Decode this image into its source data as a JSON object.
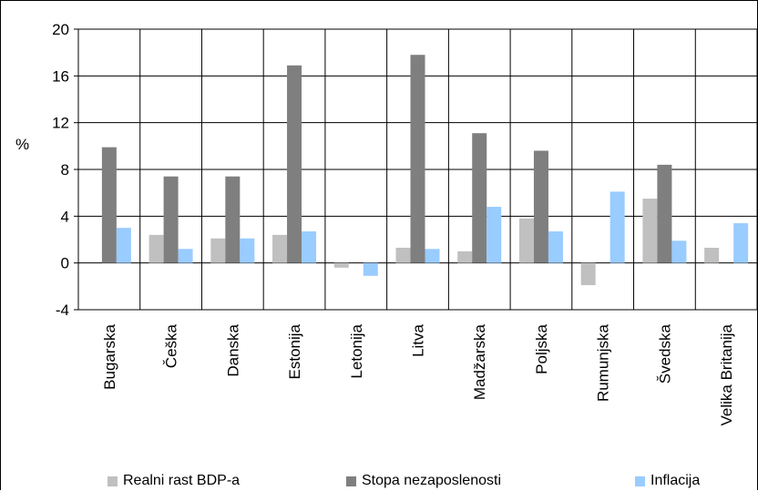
{
  "chart_data": {
    "type": "bar",
    "ylabel": "%",
    "ylim": [
      -4,
      20
    ],
    "yticks": [
      -4,
      0,
      4,
      8,
      12,
      16,
      20
    ],
    "ytick_labels": [
      "-4",
      "0",
      "4",
      "8",
      "12",
      "16",
      "20"
    ],
    "grid": true,
    "legend_position": "bottom",
    "categories": [
      "Bugarska",
      "Češka",
      "Danska",
      "Estonija",
      "Letonija",
      "Litva",
      "Madžarska",
      "Poljska",
      "Rumunjska",
      "Švedska",
      "Velika Britanija"
    ],
    "series": [
      {
        "name": "Realni rast BDP-a",
        "color": "#c0c0c0",
        "values": [
          0.0,
          2.4,
          2.1,
          2.4,
          -0.4,
          1.3,
          1.0,
          3.8,
          -1.9,
          5.5,
          1.3
        ]
      },
      {
        "name": "Stopa nezaposlenosti",
        "color": "#7f7f7f",
        "values": [
          9.9,
          7.4,
          7.4,
          16.9,
          0.0,
          17.8,
          11.1,
          9.6,
          0.0,
          8.4,
          0.0
        ]
      },
      {
        "name": "Inflacija",
        "color": "#99ccff",
        "values": [
          3.0,
          1.2,
          2.1,
          2.7,
          -1.1,
          1.2,
          4.8,
          2.7,
          6.1,
          1.9,
          3.4
        ]
      }
    ]
  }
}
